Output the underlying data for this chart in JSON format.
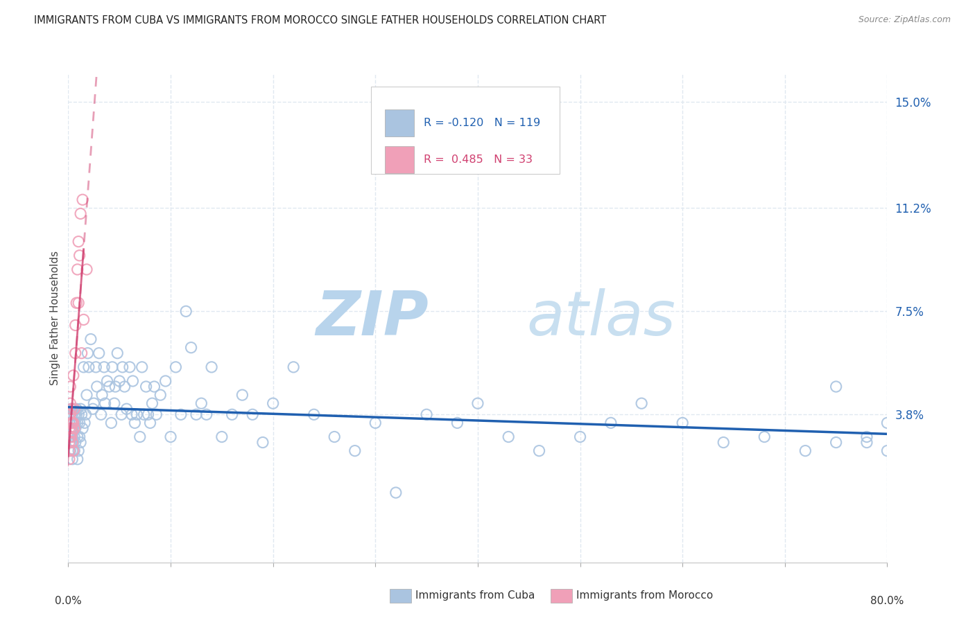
{
  "title": "IMMIGRANTS FROM CUBA VS IMMIGRANTS FROM MOROCCO SINGLE FATHER HOUSEHOLDS CORRELATION CHART",
  "source": "Source: ZipAtlas.com",
  "ylabel": "Single Father Households",
  "ytick_labels": [
    "15.0%",
    "11.2%",
    "7.5%",
    "3.8%"
  ],
  "ytick_values": [
    0.15,
    0.112,
    0.075,
    0.038
  ],
  "xlim": [
    0.0,
    0.8
  ],
  "ylim": [
    -0.015,
    0.16
  ],
  "legend_cuba_R": "-0.120",
  "legend_cuba_N": "119",
  "legend_morocco_R": "0.485",
  "legend_morocco_N": "33",
  "cuba_color": "#aac4e0",
  "morocco_color": "#f0a0b8",
  "trend_cuba_color": "#2060b0",
  "trend_morocco_color": "#d04070",
  "watermark_zip": "ZIP",
  "watermark_atlas": "atlas",
  "watermark_color": "#cce0f0",
  "background_color": "#ffffff",
  "grid_color": "#e0e8f0",
  "grid_style": "--",
  "cuba_x": [
    0.001,
    0.001,
    0.002,
    0.002,
    0.002,
    0.003,
    0.003,
    0.003,
    0.003,
    0.004,
    0.004,
    0.004,
    0.004,
    0.005,
    0.005,
    0.005,
    0.005,
    0.006,
    0.006,
    0.006,
    0.007,
    0.007,
    0.007,
    0.008,
    0.008,
    0.009,
    0.009,
    0.009,
    0.01,
    0.01,
    0.011,
    0.011,
    0.012,
    0.012,
    0.013,
    0.014,
    0.015,
    0.016,
    0.017,
    0.018,
    0.019,
    0.02,
    0.022,
    0.024,
    0.025,
    0.027,
    0.028,
    0.03,
    0.032,
    0.033,
    0.035,
    0.036,
    0.038,
    0.04,
    0.042,
    0.043,
    0.045,
    0.046,
    0.048,
    0.05,
    0.052,
    0.053,
    0.055,
    0.057,
    0.06,
    0.062,
    0.063,
    0.065,
    0.067,
    0.07,
    0.072,
    0.074,
    0.076,
    0.078,
    0.08,
    0.082,
    0.084,
    0.086,
    0.09,
    0.095,
    0.1,
    0.105,
    0.11,
    0.115,
    0.12,
    0.125,
    0.13,
    0.135,
    0.14,
    0.15,
    0.16,
    0.17,
    0.18,
    0.19,
    0.2,
    0.22,
    0.24,
    0.26,
    0.28,
    0.3,
    0.32,
    0.35,
    0.38,
    0.4,
    0.43,
    0.46,
    0.5,
    0.53,
    0.56,
    0.6,
    0.64,
    0.68,
    0.72,
    0.75,
    0.78,
    0.8,
    0.8,
    0.78,
    0.75
  ],
  "cuba_y": [
    0.035,
    0.03,
    0.032,
    0.038,
    0.025,
    0.033,
    0.028,
    0.04,
    0.035,
    0.03,
    0.038,
    0.025,
    0.022,
    0.035,
    0.032,
    0.04,
    0.028,
    0.038,
    0.03,
    0.025,
    0.033,
    0.035,
    0.028,
    0.04,
    0.038,
    0.035,
    0.03,
    0.022,
    0.038,
    0.025,
    0.03,
    0.035,
    0.04,
    0.028,
    0.038,
    0.033,
    0.055,
    0.035,
    0.038,
    0.045,
    0.06,
    0.055,
    0.065,
    0.04,
    0.042,
    0.055,
    0.048,
    0.06,
    0.038,
    0.045,
    0.055,
    0.042,
    0.05,
    0.048,
    0.035,
    0.055,
    0.042,
    0.048,
    0.06,
    0.05,
    0.038,
    0.055,
    0.048,
    0.04,
    0.055,
    0.038,
    0.05,
    0.035,
    0.038,
    0.03,
    0.055,
    0.038,
    0.048,
    0.038,
    0.035,
    0.042,
    0.048,
    0.038,
    0.045,
    0.05,
    0.03,
    0.055,
    0.038,
    0.075,
    0.062,
    0.038,
    0.042,
    0.038,
    0.055,
    0.03,
    0.038,
    0.045,
    0.038,
    0.028,
    0.042,
    0.055,
    0.038,
    0.03,
    0.025,
    0.035,
    0.01,
    0.038,
    0.035,
    0.042,
    0.03,
    0.025,
    0.03,
    0.035,
    0.042,
    0.035,
    0.028,
    0.03,
    0.025,
    0.048,
    0.028,
    0.035,
    0.025,
    0.03,
    0.028
  ],
  "morocco_x": [
    0.001,
    0.001,
    0.001,
    0.001,
    0.001,
    0.002,
    0.002,
    0.002,
    0.002,
    0.003,
    0.003,
    0.003,
    0.003,
    0.004,
    0.004,
    0.004,
    0.005,
    0.005,
    0.005,
    0.006,
    0.006,
    0.007,
    0.007,
    0.008,
    0.009,
    0.01,
    0.01,
    0.011,
    0.012,
    0.013,
    0.014,
    0.015,
    0.018
  ],
  "morocco_y": [
    0.033,
    0.028,
    0.038,
    0.025,
    0.022,
    0.03,
    0.038,
    0.042,
    0.048,
    0.035,
    0.04,
    0.03,
    0.033,
    0.035,
    0.028,
    0.032,
    0.035,
    0.052,
    0.025,
    0.04,
    0.033,
    0.06,
    0.07,
    0.078,
    0.09,
    0.1,
    0.078,
    0.095,
    0.11,
    0.06,
    0.115,
    0.072,
    0.09
  ],
  "xtick_minor": [
    0.1,
    0.2,
    0.3,
    0.4,
    0.5,
    0.6,
    0.7
  ]
}
